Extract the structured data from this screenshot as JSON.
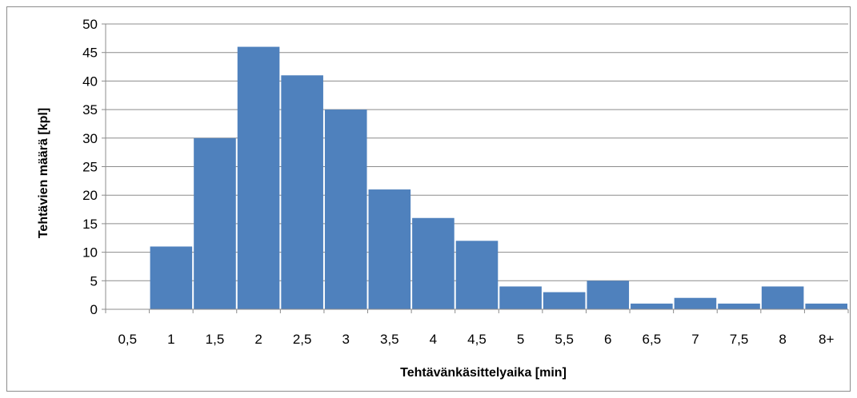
{
  "chart_data": {
    "type": "bar",
    "title": "",
    "xlabel": "Tehtävänkäsittelyaika [min]",
    "ylabel": "Tehtävien määrä [kpl]",
    "categories": [
      "0,5",
      "1",
      "1,5",
      "2",
      "2,5",
      "3",
      "3,5",
      "4",
      "4,5",
      "5",
      "5,5",
      "6",
      "6,5",
      "7",
      "7,5",
      "8",
      "8+"
    ],
    "values": [
      0,
      11,
      30,
      46,
      41,
      35,
      21,
      16,
      12,
      4,
      3,
      5,
      1,
      2,
      1,
      4,
      1
    ],
    "ylim": [
      0,
      50
    ],
    "yticks": [
      0,
      5,
      10,
      15,
      20,
      25,
      30,
      35,
      40,
      45,
      50
    ],
    "grid": true,
    "legend": "none",
    "colors": {
      "bar": "#4f81bd",
      "grid": "#8c8c8c",
      "axis": "#8c8c8c"
    }
  }
}
